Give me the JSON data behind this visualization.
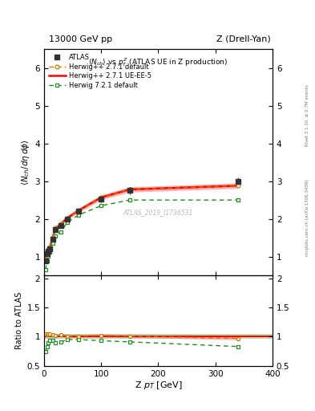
{
  "title_left": "13000 GeV pp",
  "title_right": "Z (Drell-Yan)",
  "plot_title": "<N_{ch}> vs p_{T}^{Z} (ATLAS UE in Z production)",
  "xlabel": "Z p_{T} [GeV]",
  "ylabel_main": "<N_{ch}/d#eta d#phi>",
  "ylabel_ratio": "Ratio to ATLAS",
  "right_label_top": "Rivet 3.1.10, ≥ 2.7M events",
  "right_label_bot": "mcplots.cern.ch [arXiv:1306.3436]",
  "watermark": "ATLAS_2019_I1736531",
  "atlas_x": [
    2.5,
    5,
    7.5,
    10,
    15,
    20,
    30,
    40,
    60,
    100,
    150,
    340
  ],
  "atlas_y": [
    0.88,
    1.07,
    1.13,
    1.2,
    1.46,
    1.72,
    1.82,
    2.0,
    2.2,
    2.52,
    2.75,
    3.0
  ],
  "atlas_yerr": [
    0.04,
    0.04,
    0.04,
    0.04,
    0.05,
    0.05,
    0.06,
    0.06,
    0.07,
    0.08,
    0.09,
    0.1
  ],
  "hw271_def_x": [
    2.5,
    5,
    7.5,
    10,
    15,
    20,
    30,
    40,
    60,
    100,
    150,
    340
  ],
  "hw271_def_y": [
    0.92,
    1.1,
    1.18,
    1.25,
    1.5,
    1.75,
    1.87,
    2.02,
    2.22,
    2.57,
    2.78,
    2.88
  ],
  "hw271_ue_x": [
    2.5,
    5,
    7.5,
    10,
    15,
    20,
    30,
    40,
    60,
    100,
    150,
    340
  ],
  "hw271_ue_y": [
    0.92,
    1.1,
    1.18,
    1.25,
    1.5,
    1.75,
    1.87,
    2.02,
    2.22,
    2.57,
    2.78,
    2.88
  ],
  "hw721_def_x": [
    2.5,
    5,
    7.5,
    10,
    15,
    20,
    30,
    40,
    60,
    100,
    150,
    340
  ],
  "hw721_def_y": [
    0.65,
    0.88,
    1.02,
    1.12,
    1.36,
    1.55,
    1.66,
    1.9,
    2.1,
    2.35,
    2.5,
    2.5
  ],
  "ylim_main": [
    0.5,
    6.5
  ],
  "ylim_ratio": [
    0.5,
    2.05
  ],
  "xlim": [
    0,
    400
  ],
  "xticks": [
    0,
    100,
    200,
    300,
    400
  ],
  "yticks_main": [
    1,
    2,
    3,
    4,
    5,
    6
  ],
  "yticks_ratio": [
    0.5,
    1.0,
    1.5,
    2.0
  ],
  "color_atlas": "#333333",
  "color_hw271_def": "#CC7700",
  "color_hw271_ue": "#FF0000",
  "color_hw721_def": "#228B22",
  "color_red_band": "#FF6666",
  "color_green_band": "#88CC88",
  "ratio_hw271_def": [
    1.05,
    1.03,
    1.04,
    1.04,
    1.03,
    1.02,
    1.03,
    1.01,
    1.01,
    1.02,
    1.01,
    0.97
  ],
  "ratio_hw271_ue": [
    1.05,
    1.03,
    1.04,
    1.04,
    1.03,
    1.02,
    1.03,
    1.01,
    1.01,
    1.02,
    1.01,
    0.97
  ],
  "ratio_hw721_def": [
    0.74,
    0.82,
    0.9,
    0.93,
    0.93,
    0.9,
    0.91,
    0.95,
    0.95,
    0.93,
    0.91,
    0.83
  ]
}
